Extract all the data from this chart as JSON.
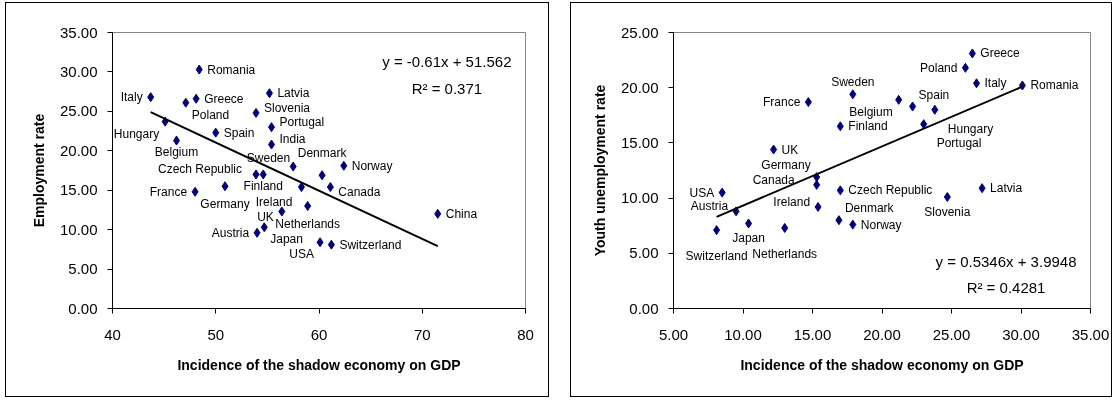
{
  "chart_data": [
    {
      "type": "scatter",
      "xlabel": "Incidence of the shadow economy on GDP",
      "ylabel": "Employment rate",
      "xlim": [
        40,
        80
      ],
      "xticks": [
        40,
        50,
        60,
        70,
        80
      ],
      "ylim": [
        0,
        35
      ],
      "yticks": [
        {
          "value": 0,
          "label": "0.00"
        },
        {
          "value": 5,
          "label": "5.00"
        },
        {
          "value": 10,
          "label": "10.00"
        },
        {
          "value": 15,
          "label": "15.00"
        },
        {
          "value": 20,
          "label": "20.00"
        },
        {
          "value": 25,
          "label": "25.00"
        },
        {
          "value": 30,
          "label": "30.00"
        },
        {
          "value": 35,
          "label": "35.00"
        }
      ],
      "series": [
        {
          "color": "#000080",
          "marker": "diamond",
          "x": [
            43.7,
            48.4,
            47.1,
            48.1,
            45.1,
            46.2,
            50.0,
            48.0,
            50.9,
            53.9,
            54.6,
            55.2,
            53.9,
            55.4,
            55.4,
            57.5,
            62.4,
            60.3,
            58.3,
            61.1,
            58.9,
            56.4,
            71.5,
            54.7,
            54.0,
            60.1,
            61.2
          ],
          "values": [
            26.8,
            30.3,
            26.1,
            26.6,
            23.7,
            21.3,
            22.3,
            14.8,
            15.5,
            17.0,
            17.0,
            27.3,
            24.8,
            23.0,
            20.8,
            18.0,
            18.1,
            16.9,
            15.4,
            15.4,
            13.0,
            12.3,
            12.0,
            10.3,
            9.6,
            8.4,
            8.1
          ],
          "value_labels": [
            "Italy",
            "Romania",
            "Poland",
            "Greece",
            "Hungary",
            "Belgium",
            "Spain",
            "France",
            "Germany",
            "Czech Republic",
            "Finland",
            "Latvia",
            "Slovenia",
            "Portugal",
            "India",
            "Sweden",
            "Norway",
            "Denmark",
            "Ireland",
            "Canada",
            "Netherlands",
            "UK",
            "China",
            "Japan",
            "Austria",
            "USA",
            "Switzerland"
          ]
        },
        {
          "type": "line",
          "color": "#000000",
          "x": [
            43.7,
            71.5
          ],
          "values": [
            24.9,
            7.9
          ]
        }
      ],
      "annotations": [
        "y = -0.61x + 51.562",
        "R² = 0.371"
      ]
    },
    {
      "type": "scatter",
      "xlabel": "Incidence of the shadow economy on GDP",
      "ylabel": "Youth unemployment rate",
      "xlim": [
        5,
        35
      ],
      "xticks": [
        {
          "value": 5,
          "label": "5.00"
        },
        {
          "value": 10,
          "label": "10.00"
        },
        {
          "value": 15,
          "label": "15.00"
        },
        {
          "value": 20,
          "label": "20.00"
        },
        {
          "value": 25,
          "label": "25.00"
        },
        {
          "value": 30,
          "label": "30.00"
        },
        {
          "value": 35,
          "label": "35.00"
        }
      ],
      "ylim": [
        0,
        25
      ],
      "yticks": [
        {
          "value": 0,
          "label": "0.00"
        },
        {
          "value": 5,
          "label": "5.00"
        },
        {
          "value": 10,
          "label": "10.00"
        },
        {
          "value": 15,
          "label": "15.00"
        },
        {
          "value": 20,
          "label": "20.00"
        },
        {
          "value": 25,
          "label": "25.00"
        }
      ],
      "series": [
        {
          "color": "#000080",
          "marker": "diamond",
          "x": [
            8.5,
            9.5,
            10.4,
            8.1,
            13.0,
            12.2,
            14.7,
            15.3,
            15.3,
            15.4,
            17.0,
            17.0,
            16.9,
            17.9,
            17.9,
            21.2,
            22.2,
            23.8,
            23.0,
            26.5,
            26.0,
            26.8,
            30.1,
            27.2,
            24.7
          ],
          "values": [
            10.5,
            8.8,
            7.7,
            7.1,
            7.3,
            14.4,
            18.7,
            11.9,
            11.2,
            9.2,
            16.5,
            10.7,
            8.0,
            7.6,
            19.4,
            18.9,
            18.3,
            18.0,
            16.7,
            23.1,
            21.8,
            20.4,
            20.2,
            10.9,
            10.1
          ],
          "value_labels": [
            "USA",
            "Austria",
            "Japan",
            "Switzerland",
            "Netherlands",
            "UK",
            "France",
            "Germany",
            "Canada",
            "Ireland",
            "Finland",
            "Czech Republic",
            "Denmark",
            "Norway",
            "Sweden",
            "Belgium",
            "Spain",
            "Hungary",
            "Portugal",
            "Greece",
            "Poland",
            "Italy",
            "Romania",
            "Latvia",
            "Slovenia"
          ]
        },
        {
          "type": "line",
          "color": "#000000",
          "x": [
            8.1,
            30.1
          ],
          "values": [
            8.3,
            20.1
          ]
        }
      ],
      "annotations": [
        "y = 0.5346x + 3.9948",
        "R² = 0.4281"
      ]
    }
  ]
}
